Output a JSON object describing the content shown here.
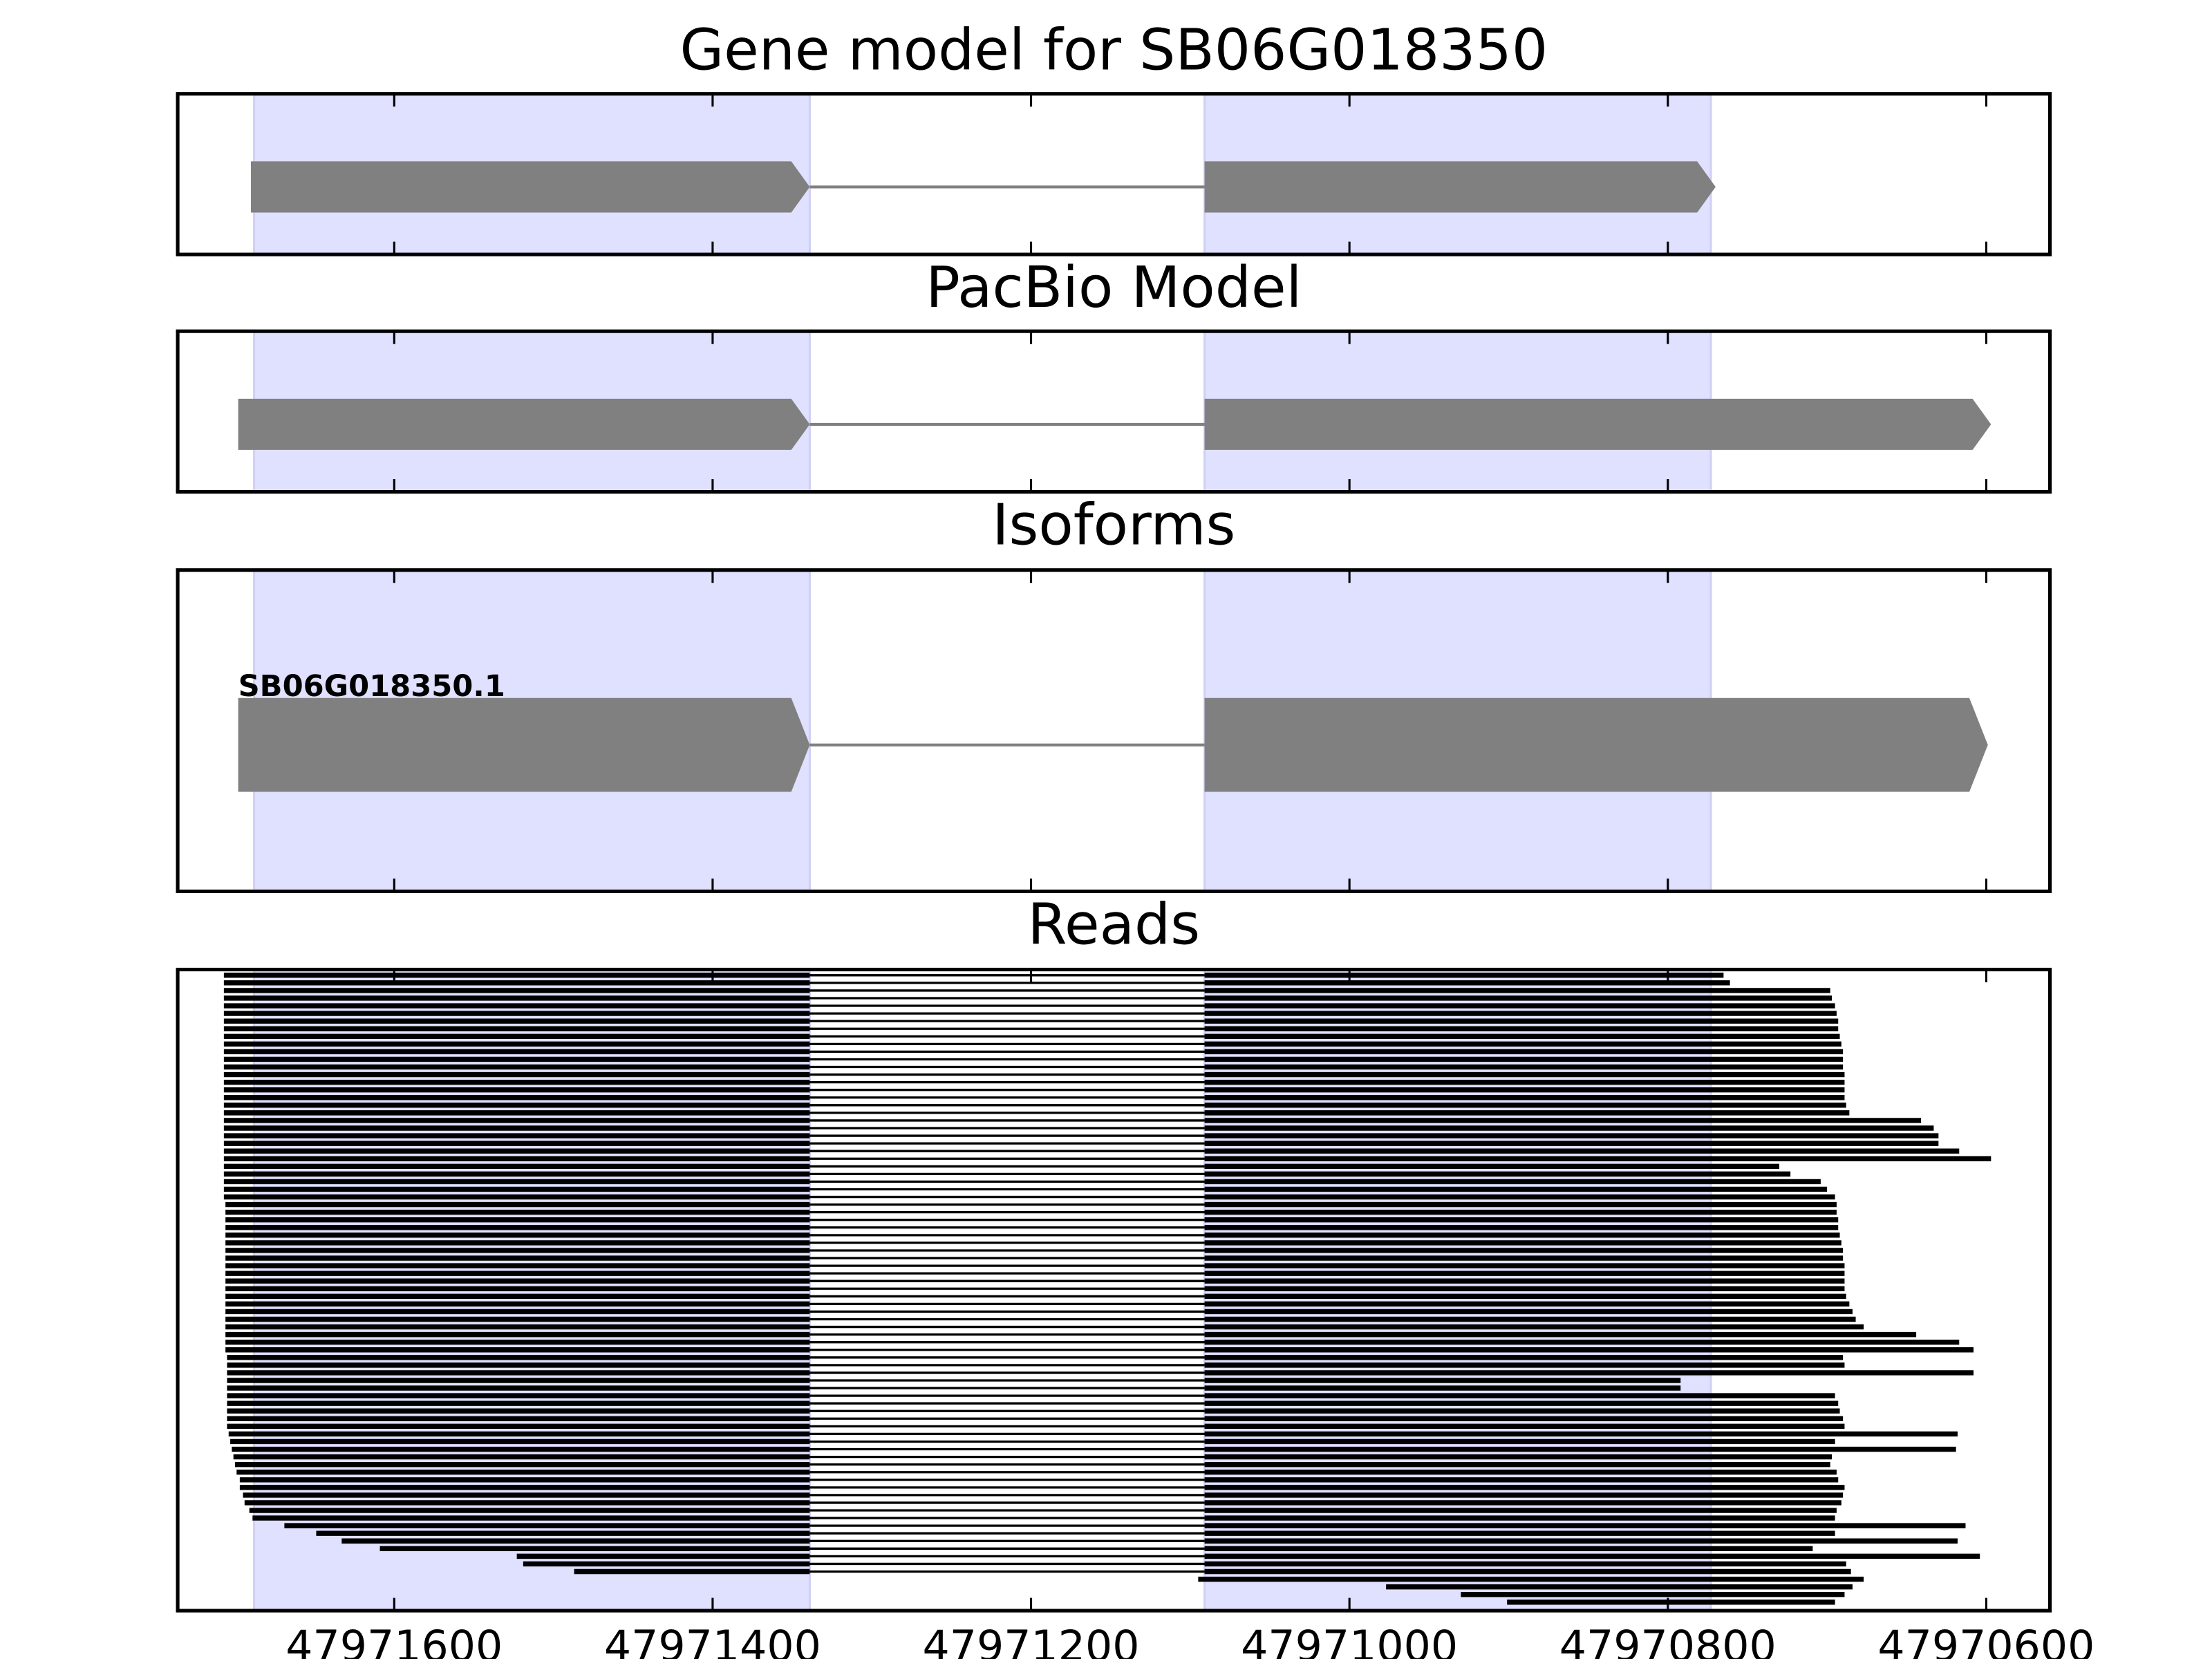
{
  "chart_data": {
    "type": "gene-track",
    "xlim": [
      47971736,
      47970560
    ],
    "xticks": [
      47971600,
      47971400,
      47971200,
      47971000,
      47970800,
      47970600
    ],
    "highlights": [
      [
        47971688,
        47971339
      ],
      [
        47971091,
        47970773
      ]
    ],
    "highlight_color": "#e0e0ff",
    "feature_color": "#808080",
    "panels": [
      {
        "type": "model",
        "title": "Gene model for SB06G018350",
        "exons": [
          [
            47971690,
            47971339
          ],
          [
            47971091,
            47970770
          ]
        ]
      },
      {
        "type": "model",
        "title": "PacBio Model",
        "exons": [
          [
            47971698,
            47971339
          ],
          [
            47971091,
            47970597
          ]
        ]
      },
      {
        "type": "model",
        "title": "Isoforms",
        "label": "SB06G018350.1",
        "exons": [
          [
            47971698,
            47971339
          ],
          [
            47971091,
            47970599
          ]
        ]
      },
      {
        "type": "reads",
        "title": "Reads",
        "color": "#000000",
        "junction": [
          47971339,
          47971091
        ],
        "starts": [
          47971707,
          47971707,
          47971707,
          47971707,
          47971707,
          47971707,
          47971707,
          47971707,
          47971707,
          47971707,
          47971707,
          47971707,
          47971707,
          47971707,
          47971707,
          47971707,
          47971707,
          47971707,
          47971707,
          47971707,
          47971707,
          47971707,
          47971707,
          47971707,
          47971707,
          47971707,
          47971707,
          47971707,
          47971707,
          47971707,
          47971706,
          47971706,
          47971706,
          47971706,
          47971706,
          47971706,
          47971706,
          47971706,
          47971706,
          47971706,
          47971706,
          47971706,
          47971706,
          47971706,
          47971706,
          47971706,
          47971706,
          47971706,
          47971706,
          47971706,
          47971705,
          47971705,
          47971705,
          47971705,
          47971705,
          47971705,
          47971705,
          47971705,
          47971705,
          47971705,
          47971704,
          47971703,
          47971702,
          47971701,
          47971700,
          47971699,
          47971697,
          47971697,
          47971695,
          47971694,
          47971691,
          47971689,
          47971669,
          47971649,
          47971633,
          47971609,
          47971523,
          47971519,
          47971487,
          47971095,
          47970977,
          47970930,
          47970901
        ],
        "ends": [
          47970765,
          47970761,
          47970698,
          47970697,
          47970695,
          47970694,
          47970693,
          47970693,
          47970692,
          47970691,
          47970690,
          47970690,
          47970690,
          47970689,
          47970689,
          47970689,
          47970689,
          47970688,
          47970686,
          47970641,
          47970633,
          47970630,
          47970630,
          47970617,
          47970597,
          47970730,
          47970723,
          47970704,
          47970700,
          47970695,
          47970694,
          47970694,
          47970693,
          47970693,
          47970692,
          47970691,
          47970690,
          47970690,
          47970689,
          47970689,
          47970689,
          47970689,
          47970688,
          47970686,
          47970684,
          47970682,
          47970677,
          47970644,
          47970617,
          47970608,
          47970690,
          47970689,
          47970608,
          47970792,
          47970792,
          47970695,
          47970693,
          47970692,
          47970690,
          47970689,
          47970618,
          47970695,
          47970619,
          47970697,
          47970698,
          47970694,
          47970693,
          47970689,
          47970690,
          47970691,
          47970694,
          47970695,
          47970613,
          47970695,
          47970618,
          47970709,
          47970604,
          47970688,
          47970685,
          47970677,
          47970684,
          47970689,
          47970695
        ]
      }
    ]
  }
}
